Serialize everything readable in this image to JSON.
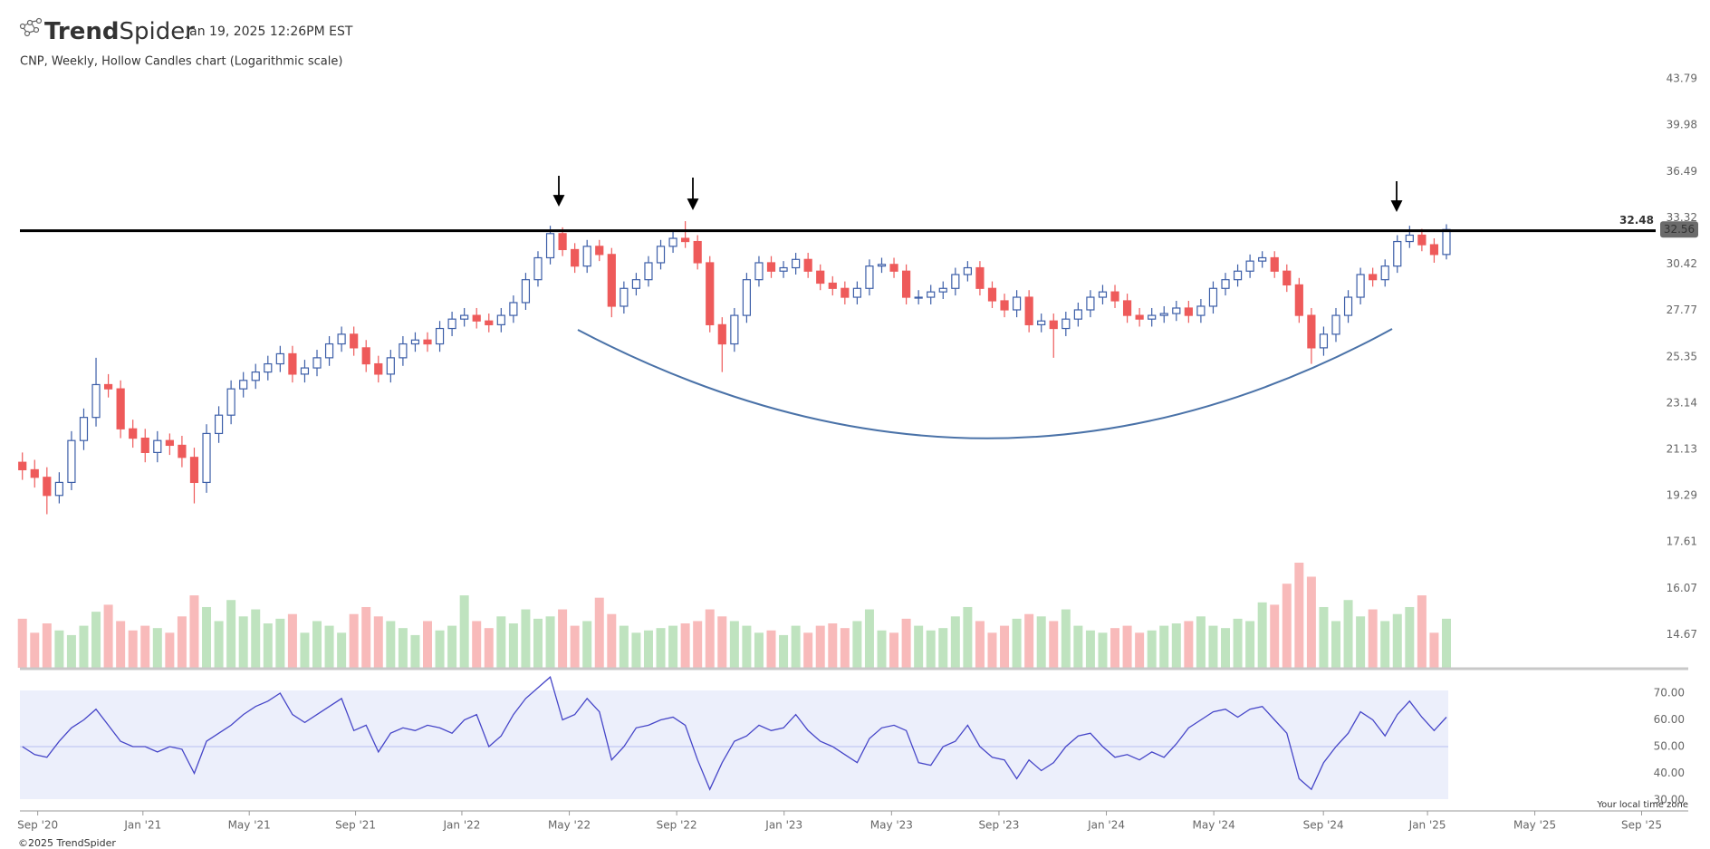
{
  "chart_data": {
    "type": "candlestick",
    "logo": [
      "Trend",
      "Spider"
    ],
    "timestamp": "Jan 19, 2025 12:26PM EST",
    "title": "CNP, Weekly, Hollow Candles chart (Logarithmic scale)",
    "time_zone_note": "Your local time zone",
    "copyright": "©2025 TrendSpider",
    "log_scale": true,
    "up_color": "#3c5ea8",
    "down_color": "#ee5a5a",
    "open": [
      20.6,
      20.3,
      20.0,
      19.3,
      19.8,
      21.5,
      22.5,
      24.0,
      23.8,
      22.0,
      21.6,
      21.0,
      21.5,
      21.3,
      20.8,
      19.8,
      21.8,
      22.6,
      23.8,
      24.2,
      24.6,
      25.0,
      25.5,
      24.5,
      24.8,
      25.3,
      26.0,
      26.5,
      25.8,
      25.0,
      24.5,
      25.3,
      26.0,
      26.2,
      26.0,
      26.8,
      27.3,
      27.5,
      27.2,
      27.0,
      27.5,
      28.2,
      29.5,
      30.8,
      32.3,
      31.3,
      30.3,
      31.5,
      31.0,
      28.0,
      29.0,
      29.5,
      30.5,
      31.5,
      32.0,
      31.8,
      30.5,
      27.0,
      26.0,
      27.5,
      29.5,
      30.5,
      30.0,
      30.2,
      30.7,
      30.0,
      29.3,
      29.0,
      28.5,
      29.0,
      30.3,
      30.4,
      30.0,
      28.5,
      28.5,
      28.8,
      29.0,
      29.8,
      30.2,
      29.0,
      28.3,
      27.8,
      28.5,
      27.0,
      27.2,
      26.8,
      27.3,
      27.8,
      28.5,
      28.8,
      28.3,
      27.5,
      27.3,
      27.5,
      27.6,
      27.9,
      27.5,
      28.0,
      29.0,
      29.5,
      30.0,
      30.6,
      30.8,
      30.0,
      29.2,
      27.5,
      25.8,
      26.5,
      27.5,
      28.5,
      29.8,
      29.5,
      30.3,
      31.8,
      32.2,
      31.6,
      31.0
    ],
    "high": [
      21.0,
      20.7,
      20.4,
      20.2,
      21.9,
      22.9,
      25.3,
      24.5,
      24.2,
      22.4,
      22.0,
      21.9,
      21.8,
      21.7,
      21.2,
      22.2,
      23.0,
      24.2,
      24.6,
      25.0,
      25.4,
      25.9,
      25.9,
      25.2,
      25.7,
      26.4,
      26.9,
      26.9,
      26.2,
      25.4,
      25.7,
      26.4,
      26.6,
      26.6,
      27.2,
      27.7,
      27.9,
      27.9,
      27.6,
      27.9,
      28.6,
      29.9,
      31.2,
      32.8,
      32.7,
      31.7,
      31.9,
      31.9,
      31.4,
      29.4,
      29.9,
      30.9,
      31.9,
      32.4,
      33.1,
      32.2,
      30.9,
      27.4,
      27.9,
      29.9,
      30.9,
      30.9,
      30.6,
      31.1,
      31.1,
      30.4,
      29.7,
      29.4,
      29.4,
      30.7,
      30.8,
      30.8,
      30.4,
      28.9,
      29.2,
      29.4,
      30.2,
      30.6,
      30.6,
      29.4,
      28.7,
      28.9,
      28.9,
      27.6,
      27.6,
      27.7,
      28.2,
      28.9,
      29.2,
      29.2,
      28.7,
      27.9,
      27.9,
      28.0,
      28.3,
      28.3,
      28.4,
      29.4,
      29.9,
      30.4,
      31.0,
      31.2,
      31.2,
      30.4,
      29.6,
      27.9,
      26.9,
      27.9,
      28.9,
      30.2,
      30.2,
      30.7,
      32.2,
      32.8,
      32.6,
      32.0,
      32.9
    ],
    "low": [
      19.9,
      19.6,
      18.6,
      19.0,
      19.5,
      21.1,
      22.1,
      23.4,
      21.6,
      21.2,
      20.6,
      20.6,
      20.9,
      20.4,
      19.0,
      19.4,
      21.4,
      22.2,
      23.4,
      23.8,
      24.2,
      24.6,
      24.1,
      24.1,
      24.4,
      24.9,
      25.6,
      25.4,
      24.6,
      24.1,
      24.1,
      24.9,
      25.6,
      25.6,
      25.6,
      26.4,
      26.9,
      26.8,
      26.6,
      26.6,
      27.1,
      27.8,
      29.1,
      30.4,
      30.9,
      29.9,
      29.9,
      30.6,
      27.4,
      27.6,
      28.6,
      29.1,
      30.1,
      31.1,
      31.4,
      30.1,
      26.6,
      24.6,
      25.6,
      27.1,
      29.1,
      29.6,
      29.6,
      29.8,
      29.6,
      28.9,
      28.6,
      28.1,
      28.1,
      28.6,
      29.9,
      29.6,
      28.1,
      28.1,
      28.1,
      28.4,
      28.6,
      29.4,
      28.6,
      27.9,
      27.4,
      27.4,
      26.6,
      26.6,
      25.3,
      26.4,
      26.9,
      27.4,
      28.1,
      27.9,
      27.1,
      26.9,
      26.9,
      27.1,
      27.2,
      27.1,
      27.1,
      27.6,
      28.6,
      29.1,
      29.6,
      30.2,
      29.6,
      28.8,
      27.1,
      25.0,
      25.4,
      26.1,
      27.1,
      28.1,
      29.1,
      29.1,
      29.9,
      31.4,
      31.2,
      30.5,
      30.7
    ],
    "close": [
      20.3,
      20.0,
      19.3,
      19.8,
      21.5,
      22.5,
      24.0,
      23.8,
      22.0,
      21.6,
      21.0,
      21.5,
      21.3,
      20.8,
      19.8,
      21.8,
      22.6,
      23.8,
      24.2,
      24.6,
      25.0,
      25.5,
      24.5,
      24.8,
      25.3,
      26.0,
      26.5,
      25.8,
      25.0,
      24.5,
      25.3,
      26.0,
      26.2,
      26.0,
      26.8,
      27.3,
      27.5,
      27.2,
      27.0,
      27.5,
      28.2,
      29.5,
      30.8,
      32.3,
      31.3,
      30.3,
      31.5,
      31.0,
      28.0,
      29.0,
      29.5,
      30.5,
      31.5,
      32.0,
      31.8,
      30.5,
      27.0,
      26.0,
      27.5,
      29.5,
      30.5,
      30.0,
      30.2,
      30.7,
      30.0,
      29.3,
      29.0,
      28.5,
      29.0,
      30.3,
      30.4,
      30.0,
      28.5,
      28.5,
      28.8,
      29.0,
      29.8,
      30.2,
      29.0,
      28.3,
      27.8,
      28.5,
      27.0,
      27.2,
      26.8,
      27.3,
      27.8,
      28.5,
      28.8,
      28.3,
      27.5,
      27.3,
      27.5,
      27.6,
      27.9,
      27.5,
      28.0,
      29.0,
      29.5,
      30.0,
      30.6,
      30.8,
      30.0,
      29.2,
      27.5,
      25.8,
      26.5,
      27.5,
      28.5,
      29.8,
      29.5,
      30.3,
      31.8,
      32.2,
      31.6,
      31.0,
      32.56
    ],
    "xlim": [
      -0.2,
      135.7
    ],
    "xticks": [
      {
        "value": 1.25,
        "label": "Sep '20"
      },
      {
        "value": 9.82,
        "label": "Jan '21"
      },
      {
        "value": 18.48,
        "label": "May '21"
      },
      {
        "value": 27.14,
        "label": "Sep '21"
      },
      {
        "value": 35.8,
        "label": "Jan '22"
      },
      {
        "value": 44.55,
        "label": "May '22"
      },
      {
        "value": 53.3,
        "label": "Sep '22"
      },
      {
        "value": 62.05,
        "label": "Jan '23"
      },
      {
        "value": 70.8,
        "label": "May '23"
      },
      {
        "value": 79.55,
        "label": "Sep '23"
      },
      {
        "value": 88.3,
        "label": "Jan '24"
      },
      {
        "value": 97.05,
        "label": "May '24"
      },
      {
        "value": 105.98,
        "label": "Sep '24"
      },
      {
        "value": 114.46,
        "label": "Jan '25"
      },
      {
        "value": 123.2,
        "label": "May '25"
      },
      {
        "value": 131.9,
        "label": "Sep '25"
      }
    ],
    "ylim": [
      13.8,
      45.95
    ],
    "yticks": [
      43.79,
      39.98,
      36.49,
      33.32,
      30.42,
      27.77,
      25.35,
      23.14,
      21.13,
      19.29,
      17.61,
      16.07,
      14.67
    ],
    "resistance": 32.48,
    "volume": {
      "up_color": "#bfe3bf",
      "down_color": "#f8baba",
      "values": [
        42,
        30,
        38,
        32,
        28,
        36,
        48,
        54,
        40,
        32,
        36,
        34,
        30,
        44,
        62,
        52,
        40,
        58,
        44,
        50,
        38,
        42,
        46,
        30,
        40,
        36,
        30,
        46,
        52,
        44,
        40,
        34,
        28,
        40,
        32,
        36,
        62,
        40,
        34,
        44,
        38,
        50,
        42,
        44,
        50,
        36,
        40,
        60,
        46,
        36,
        30,
        32,
        34,
        36,
        38,
        40,
        50,
        44,
        40,
        36,
        30,
        32,
        28,
        36,
        30,
        36,
        38,
        34,
        40,
        50,
        32,
        30,
        42,
        36,
        32,
        34,
        44,
        52,
        40,
        30,
        36,
        42,
        46,
        44,
        40,
        50,
        36,
        32,
        30,
        34,
        36,
        30,
        32,
        36,
        38,
        40,
        44,
        36,
        34,
        42,
        40,
        56,
        54,
        72,
        90,
        78,
        52,
        40,
        58,
        44,
        50,
        40,
        46,
        52,
        62,
        30,
        42
      ]
    },
    "rsi": {
      "color": "#4646c8",
      "background": "#eceffb",
      "midline": 50,
      "ylim": [
        30,
        71
      ],
      "yticks": [
        {
          "value": 70,
          "label": "70.00"
        },
        {
          "value": 60,
          "label": "60.00"
        },
        {
          "value": 50,
          "label": "50.00"
        },
        {
          "value": 40,
          "label": "40.00"
        },
        {
          "value": 30,
          "label": "30.00"
        }
      ],
      "values": [
        50,
        47,
        46,
        52,
        57,
        60,
        64,
        58,
        52,
        50,
        50,
        48,
        50,
        49,
        40,
        52,
        55,
        58,
        62,
        65,
        67,
        70,
        62,
        59,
        62,
        65,
        68,
        56,
        58,
        48,
        55,
        57,
        56,
        58,
        57,
        55,
        60,
        62,
        50,
        54,
        62,
        68,
        72,
        76,
        60,
        62,
        68,
        63,
        45,
        50,
        57,
        58,
        60,
        61,
        58,
        45,
        34,
        44,
        52,
        54,
        58,
        56,
        57,
        62,
        56,
        52,
        50,
        47,
        44,
        53,
        57,
        58,
        56,
        44,
        43,
        50,
        52,
        58,
        50,
        46,
        45,
        38,
        45,
        41,
        44,
        50,
        54,
        55,
        50,
        46,
        47,
        45,
        48,
        46,
        51,
        57,
        60,
        63,
        64,
        61,
        64,
        65,
        60,
        55,
        38,
        34,
        44,
        50,
        55,
        63,
        60,
        54,
        62,
        67,
        61,
        56,
        61
      ]
    }
  }
}
